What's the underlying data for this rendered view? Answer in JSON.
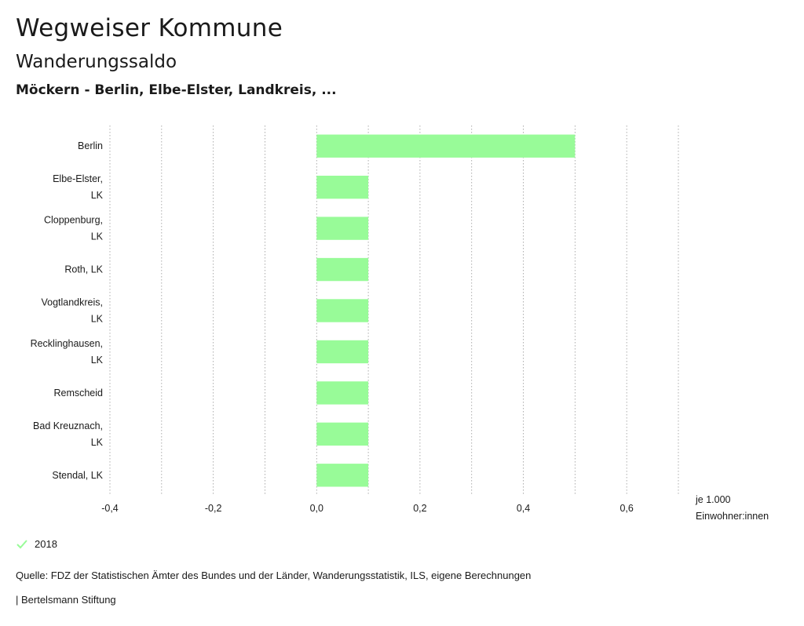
{
  "header": {
    "title": "Wegweiser Kommune",
    "subtitle": "Wanderungssaldo",
    "selection": "Möckern - Berlin, Elbe-Elster, Landkreis, ..."
  },
  "legend": {
    "label": "2018"
  },
  "footer": {
    "source": "Quelle: FDZ der Statistischen Ämter des Bundes und der Länder, Wanderungsstatistik, ILS, eigene Berechnungen",
    "brand": "| Bertelsmann Stiftung"
  },
  "colors": {
    "bar": "#98fb98",
    "grid": "#999999",
    "legend_check": "#98fb98"
  },
  "chart_data": {
    "type": "bar",
    "orientation": "horizontal",
    "title": "Wanderungssaldo",
    "unit_label": [
      "je 1.000",
      "Einwohner:innen"
    ],
    "categories": [
      [
        "Berlin"
      ],
      [
        "Elbe-Elster,",
        "LK"
      ],
      [
        "Cloppenburg,",
        "LK"
      ],
      [
        "Roth, LK"
      ],
      [
        "Vogtlandkreis,",
        "LK"
      ],
      [
        "Recklinghausen,",
        "LK"
      ],
      [
        "Remscheid"
      ],
      [
        "Bad Kreuznach,",
        "LK"
      ],
      [
        "Stendal, LK"
      ]
    ],
    "series": [
      {
        "name": "2018",
        "values": [
          0.5,
          0.1,
          0.1,
          0.1,
          0.1,
          0.1,
          0.1,
          0.1,
          0.1
        ]
      }
    ],
    "xlim": [
      -0.4,
      0.7
    ],
    "xticks": [
      -0.4,
      -0.2,
      0.0,
      0.2,
      0.4,
      0.6
    ],
    "xtick_labels": [
      "-0,4",
      "-0,2",
      "0,0",
      "0,2",
      "0,4",
      "0,6"
    ],
    "gridlines": [
      -0.4,
      -0.3,
      -0.2,
      -0.1,
      0.0,
      0.1,
      0.2,
      0.3,
      0.4,
      0.5,
      0.6,
      0.7
    ],
    "grid": true
  }
}
